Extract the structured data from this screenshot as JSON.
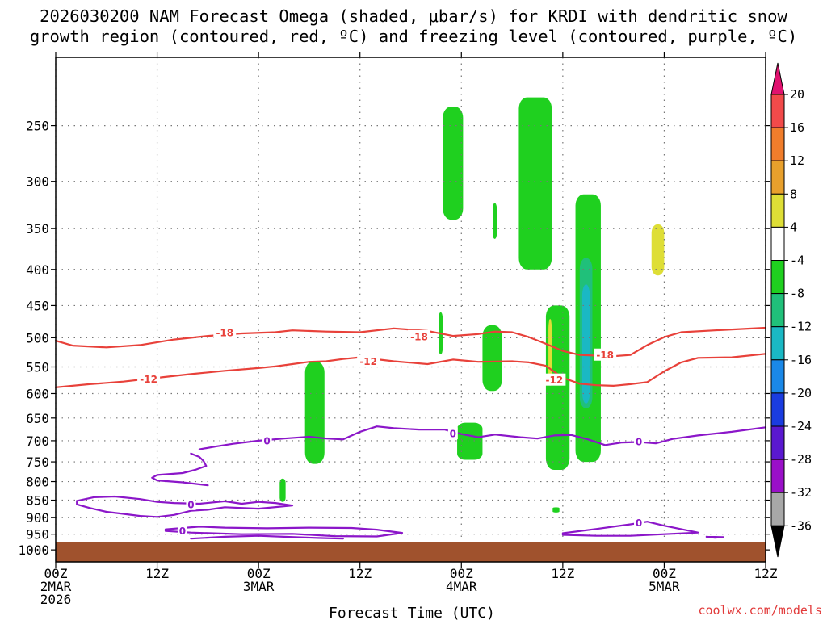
{
  "title_line1": "2026030200 NAM Forecast Omega (shaded, μbar/s) for KRDI with dendritic snow",
  "title_line2": "growth region (contoured, red, ºC) and freezing level (contoured, purple, ºC)",
  "credit": "coolwx.com/models",
  "chart_data": {
    "type": "time-height cross section",
    "x_axis_label": "Forecast Time (UTC)",
    "x_ticks": [
      {
        "hour": 0,
        "lines": [
          "00Z",
          "2MAR",
          "2026"
        ]
      },
      {
        "hour": 12,
        "lines": [
          "12Z"
        ]
      },
      {
        "hour": 24,
        "lines": [
          "00Z",
          "3MAR"
        ]
      },
      {
        "hour": 36,
        "lines": [
          "12Z"
        ]
      },
      {
        "hour": 48,
        "lines": [
          "00Z",
          "4MAR"
        ]
      },
      {
        "hour": 60,
        "lines": [
          "12Z"
        ]
      },
      {
        "hour": 72,
        "lines": [
          "00Z",
          "5MAR"
        ]
      },
      {
        "hour": 84,
        "lines": [
          "12Z"
        ]
      }
    ],
    "xlim_hours": [
      0,
      84
    ],
    "y_axis": "pressure (hPa)",
    "y_ticks": [
      250,
      300,
      350,
      400,
      450,
      500,
      550,
      600,
      650,
      700,
      750,
      800,
      850,
      900,
      950,
      1000
    ],
    "ylim_hpa": [
      200,
      1040
    ],
    "surface_pressure_hpa": 1000,
    "colorbar": {
      "label_values": [
        "20",
        "16",
        "12",
        "8",
        "4",
        "-4",
        "-8",
        "-12",
        "-16",
        "-20",
        "-24",
        "-28",
        "-32",
        "-36"
      ],
      "bins": [
        {
          "color": "#e0126f",
          "role": "above 20"
        },
        {
          "color": "#f24a4a",
          "range": [
            16,
            20
          ]
        },
        {
          "color": "#f07d2b",
          "range": [
            12,
            16
          ]
        },
        {
          "color": "#e8a02c",
          "range": [
            8,
            12
          ]
        },
        {
          "color": "#dede36",
          "range": [
            4,
            8
          ]
        },
        {
          "color": "#ffffff",
          "range": [
            -4,
            4
          ]
        },
        {
          "color": "#1fd01f",
          "range": [
            -8,
            -4
          ]
        },
        {
          "color": "#20c07a",
          "range": [
            -12,
            -8
          ]
        },
        {
          "color": "#1ab8c4",
          "range": [
            -16,
            -12
          ]
        },
        {
          "color": "#1a88e8",
          "range": [
            -20,
            -16
          ]
        },
        {
          "color": "#1a3ce0",
          "range": [
            -24,
            -20
          ]
        },
        {
          "color": "#5a18d0",
          "range": [
            -28,
            -24
          ]
        },
        {
          "color": "#9a10c8",
          "range": [
            -32,
            -28
          ]
        },
        {
          "color": "#a8a8a8",
          "range": [
            -36,
            -32
          ]
        },
        {
          "color": "#000000",
          "role": "below -36"
        }
      ]
    },
    "omega_regions": [
      {
        "color": "#1fd01f",
        "hours": [
          45.8,
          48.2
        ],
        "p_hpa": [
          235,
          340
        ]
      },
      {
        "color": "#1fd01f",
        "hours": [
          51.7,
          52.2
        ],
        "p_hpa": [
          322,
          362
        ]
      },
      {
        "color": "#1fd01f",
        "hours": [
          54.8,
          58.7
        ],
        "p_hpa": [
          228,
          400
        ]
      },
      {
        "color": "#1fd01f",
        "hours": [
          61.5,
          64.5
        ],
        "p_hpa": [
          313,
          750
        ]
      },
      {
        "color": "#20c07a",
        "hours": [
          62.0,
          63.5
        ],
        "p_hpa": [
          385,
          630
        ]
      },
      {
        "color": "#1ab8c4",
        "hours": [
          62.3,
          63.2
        ],
        "p_hpa": [
          420,
          620
        ]
      },
      {
        "color": "#dede36",
        "hours": [
          70.5,
          72.0
        ],
        "p_hpa": [
          345,
          408
        ]
      },
      {
        "color": "#1fd01f",
        "hours": [
          45.3,
          45.8
        ],
        "p_hpa": [
          460,
          528
        ]
      },
      {
        "color": "#1fd01f",
        "hours": [
          50.5,
          52.8
        ],
        "p_hpa": [
          480,
          595
        ]
      },
      {
        "color": "#1fd01f",
        "hours": [
          58.0,
          60.8
        ],
        "p_hpa": [
          450,
          770
        ]
      },
      {
        "color": "#dede36",
        "hours": [
          58.3,
          58.7
        ],
        "p_hpa": [
          470,
          585
        ]
      },
      {
        "color": "#1fd01f",
        "hours": [
          29.5,
          31.8
        ],
        "p_hpa": [
          540,
          755
        ]
      },
      {
        "color": "#1fd01f",
        "hours": [
          47.5,
          50.5
        ],
        "p_hpa": [
          660,
          745
        ]
      },
      {
        "color": "#1fd01f",
        "hours": [
          26.5,
          27.2
        ],
        "p_hpa": [
          792,
          855
        ]
      },
      {
        "color": "#1fd01f",
        "hours": [
          58.8,
          59.6
        ],
        "p_hpa": [
          870,
          885
        ]
      }
    ],
    "contours": [
      {
        "name": "-18 °C (dendritic growth top)",
        "color": "#e8413a",
        "label": "-18",
        "points": [
          [
            0,
            505
          ],
          [
            2,
            513
          ],
          [
            6,
            516
          ],
          [
            10,
            512
          ],
          [
            14,
            503
          ],
          [
            18,
            497
          ],
          [
            22,
            493
          ],
          [
            26,
            491
          ],
          [
            28,
            488
          ],
          [
            32,
            490
          ],
          [
            36,
            491
          ],
          [
            40,
            485
          ],
          [
            44,
            489
          ],
          [
            47,
            497
          ],
          [
            50,
            494
          ],
          [
            52,
            490
          ],
          [
            54,
            491
          ],
          [
            56,
            499
          ],
          [
            58,
            510
          ],
          [
            60,
            522
          ],
          [
            62,
            529
          ],
          [
            64,
            530
          ],
          [
            66,
            531
          ],
          [
            68,
            529
          ],
          [
            70,
            512
          ],
          [
            72,
            499
          ],
          [
            74,
            491
          ],
          [
            78,
            488
          ],
          [
            84,
            484
          ]
        ],
        "label_at": [
          [
            20,
            492
          ],
          [
            43,
            498
          ],
          [
            65,
            529
          ]
        ]
      },
      {
        "name": "-12 °C (dendritic growth bottom)",
        "color": "#e8413a",
        "label": "-12",
        "points": [
          [
            0,
            588
          ],
          [
            4,
            582
          ],
          [
            8,
            577
          ],
          [
            12,
            570
          ],
          [
            16,
            563
          ],
          [
            20,
            557
          ],
          [
            24,
            552
          ],
          [
            26,
            549
          ],
          [
            28,
            545
          ],
          [
            30,
            541
          ],
          [
            32,
            540
          ],
          [
            34,
            536
          ],
          [
            36,
            533
          ],
          [
            40,
            540
          ],
          [
            44,
            545
          ],
          [
            47,
            537
          ],
          [
            50,
            541
          ],
          [
            54,
            540
          ],
          [
            56,
            542
          ],
          [
            58,
            548
          ],
          [
            60,
            570
          ],
          [
            62,
            581
          ],
          [
            64,
            584
          ],
          [
            66,
            585
          ],
          [
            68,
            582
          ],
          [
            70,
            578
          ],
          [
            72,
            558
          ],
          [
            74,
            542
          ],
          [
            76,
            534
          ],
          [
            80,
            533
          ],
          [
            84,
            527
          ]
        ],
        "label_at": [
          [
            11,
            572
          ],
          [
            37,
            540
          ],
          [
            59,
            574
          ]
        ]
      },
      {
        "name": "0 °C freezing level",
        "color": "#8b16c9",
        "label": "0",
        "points": [
          [
            17,
            720
          ],
          [
            19,
            713
          ],
          [
            21,
            707
          ],
          [
            24,
            700
          ],
          [
            27,
            695
          ],
          [
            30,
            691
          ],
          [
            32,
            695
          ],
          [
            34,
            697
          ],
          [
            36,
            680
          ],
          [
            38,
            668
          ],
          [
            40,
            672
          ],
          [
            43,
            675
          ],
          [
            46,
            675
          ],
          [
            48,
            685
          ],
          [
            50,
            692
          ],
          [
            52,
            686
          ],
          [
            55,
            692
          ],
          [
            57,
            695
          ],
          [
            59,
            688
          ],
          [
            61,
            687
          ],
          [
            63,
            697
          ],
          [
            65,
            710
          ],
          [
            67,
            704
          ],
          [
            69,
            703
          ],
          [
            71,
            706
          ],
          [
            73,
            696
          ],
          [
            76,
            688
          ],
          [
            80,
            680
          ],
          [
            84,
            670
          ]
        ],
        "label_at": [
          [
            25,
            700
          ],
          [
            47,
            684
          ],
          [
            69,
            702
          ]
        ]
      },
      {
        "name": "0 °C low-level lobe",
        "color": "#8b16c9",
        "points": [
          [
            16,
            730
          ],
          [
            17,
            738
          ],
          [
            17.5,
            748
          ],
          [
            17.8,
            760
          ],
          [
            16.5,
            770
          ],
          [
            15,
            778
          ],
          [
            12,
            783
          ],
          [
            11.4,
            790
          ],
          [
            12,
            797
          ],
          [
            15,
            802
          ],
          [
            18,
            810
          ]
        ],
        "label_at": []
      },
      {
        "name": "0 °C lower lobe A",
        "color": "#8b16c9",
        "label": "0",
        "points": [
          [
            2.5,
            852
          ],
          [
            4.5,
            842
          ],
          [
            7,
            840
          ],
          [
            10,
            847
          ],
          [
            12,
            855
          ],
          [
            14,
            858
          ],
          [
            17,
            860
          ],
          [
            20,
            853
          ],
          [
            22,
            860
          ],
          [
            24,
            855
          ],
          [
            26,
            858
          ],
          [
            28,
            865
          ],
          [
            24,
            874
          ],
          [
            20,
            870
          ],
          [
            18,
            877
          ],
          [
            16,
            880
          ],
          [
            14,
            892
          ],
          [
            12,
            898
          ],
          [
            10,
            895
          ],
          [
            8,
            889
          ],
          [
            6,
            883
          ],
          [
            4,
            872
          ],
          [
            2.5,
            862
          ],
          [
            2.5,
            852
          ]
        ],
        "label_at": [
          [
            16,
            862
          ]
        ]
      },
      {
        "name": "0 °C lower lobe B",
        "color": "#8b16c9",
        "label": "0",
        "points": [
          [
            13,
            935
          ],
          [
            17,
            927
          ],
          [
            20,
            930
          ],
          [
            25,
            932
          ],
          [
            30,
            930
          ],
          [
            35,
            931
          ],
          [
            38,
            936
          ],
          [
            41,
            946
          ],
          [
            38,
            957
          ],
          [
            33,
            956
          ],
          [
            28,
            949
          ],
          [
            22,
            950
          ],
          [
            16,
            945
          ],
          [
            13,
            940
          ],
          [
            13,
            935
          ]
        ],
        "label_at": [
          [
            15,
            940
          ]
        ]
      },
      {
        "name": "0 °C lower lobe C",
        "color": "#8b16c9",
        "label": "0",
        "points": [
          [
            60,
            947
          ],
          [
            64,
            934
          ],
          [
            68,
            920
          ],
          [
            70,
            912
          ],
          [
            72,
            924
          ],
          [
            76,
            945
          ],
          [
            72,
            950
          ],
          [
            68,
            955
          ],
          [
            64,
            955
          ],
          [
            60,
            952
          ],
          [
            60,
            947
          ]
        ],
        "label_at": [
          [
            69,
            915
          ]
        ]
      },
      {
        "name": "0 °C near-surface",
        "color": "#8b16c9",
        "points": [
          [
            16,
            964
          ],
          [
            20,
            958
          ],
          [
            24,
            955
          ],
          [
            27,
            958
          ],
          [
            31,
            962
          ],
          [
            34,
            964
          ]
        ],
        "label_at": []
      },
      {
        "name": "0 °C near-surface 2",
        "color": "#8b16c9",
        "points": [
          [
            77,
            958
          ],
          [
            79,
            959
          ],
          [
            78,
            961
          ],
          [
            77,
            958
          ]
        ],
        "label_at": []
      }
    ]
  }
}
